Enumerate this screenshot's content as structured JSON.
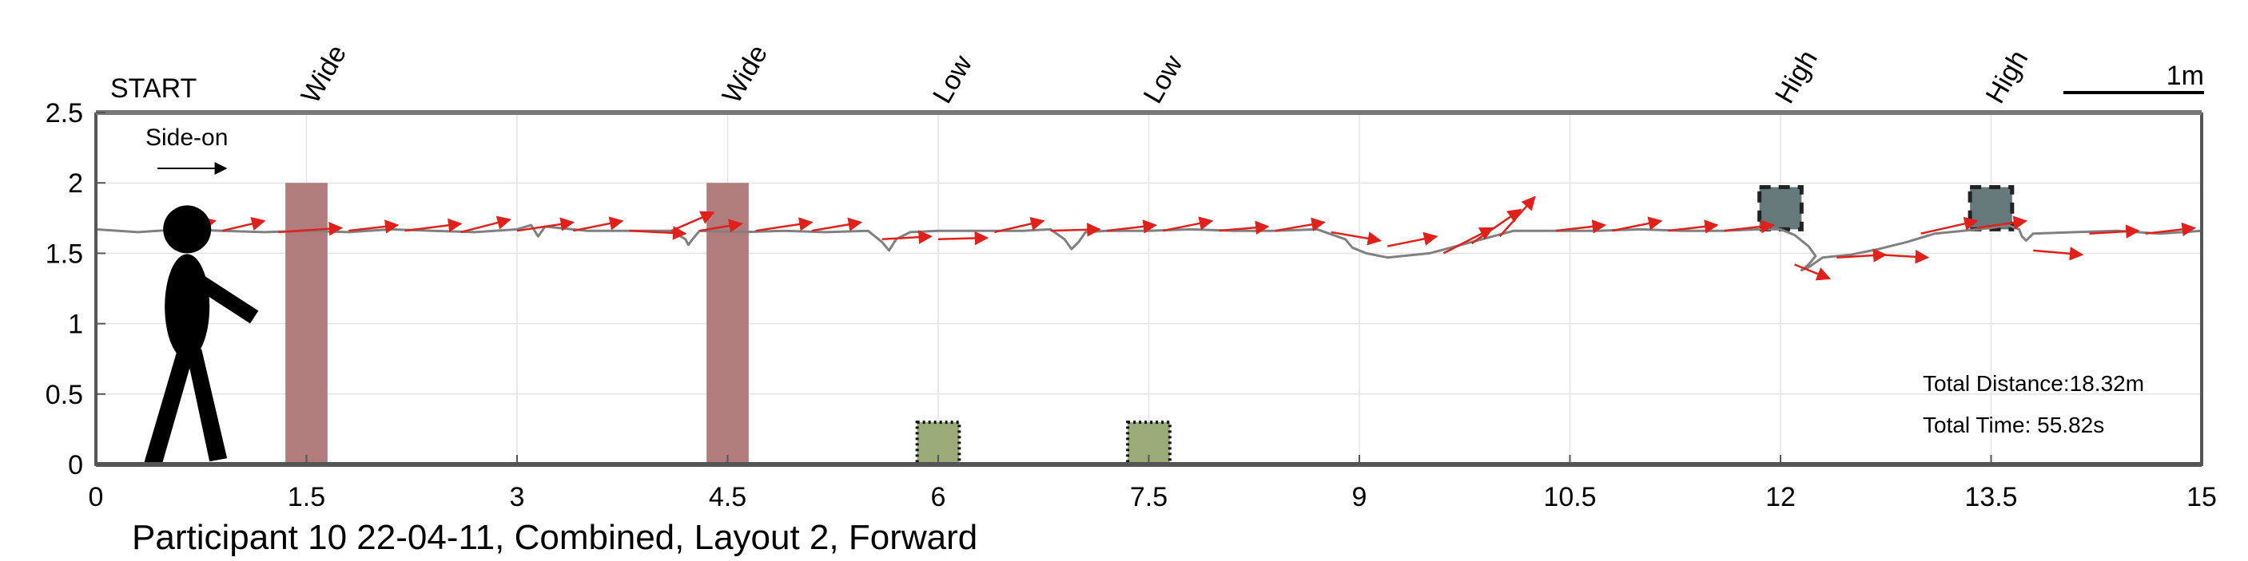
{
  "chart_data": {
    "type": "line",
    "caption": "Participant 10 22-04-11, Combined, Layout 2, Forward",
    "start_label": "START",
    "scale_label": "1m",
    "direction_label": "Side-on",
    "xlim": [
      0,
      15
    ],
    "ylim": [
      0,
      2.5
    ],
    "x_ticks": [
      0,
      1.5,
      3,
      4.5,
      6,
      7.5,
      9,
      10.5,
      12,
      13.5,
      15
    ],
    "x_tick_labels": [
      "0",
      "1.5",
      "3",
      "4.5",
      "6",
      "7.5",
      "9",
      "10.5",
      "12",
      "13.5",
      "15"
    ],
    "y_ticks": [
      0,
      0.5,
      1,
      1.5,
      2,
      2.5
    ],
    "y_tick_labels": [
      "0",
      "0.5",
      "1",
      "1.5",
      "2",
      "2.5"
    ],
    "grid": true,
    "obstacles": [
      {
        "label": "Wide",
        "kind": "wide",
        "x0": 1.35,
        "x1": 1.65,
        "y0": 0,
        "y1": 2.0,
        "color": "#b07c7c"
      },
      {
        "label": "Wide",
        "kind": "wide",
        "x0": 4.35,
        "x1": 4.65,
        "y0": 0,
        "y1": 2.0,
        "color": "#b07c7c"
      },
      {
        "label": "Low",
        "kind": "low",
        "x0": 5.85,
        "x1": 6.15,
        "y0": 0,
        "y1": 0.3,
        "color": "#9aab78"
      },
      {
        "label": "Low",
        "kind": "low",
        "x0": 7.35,
        "x1": 7.65,
        "y0": 0,
        "y1": 0.3,
        "color": "#9aab78"
      },
      {
        "label": "High",
        "kind": "high",
        "x0": 11.85,
        "x1": 12.15,
        "y0": 1.67,
        "y1": 1.97,
        "color": "#65797b"
      },
      {
        "label": "High",
        "kind": "high",
        "x0": 13.35,
        "x1": 13.65,
        "y0": 1.67,
        "y1": 1.97,
        "color": "#65797b"
      }
    ],
    "series": [
      {
        "color": "#808080",
        "x": [
          0,
          0.3,
          0.6,
          0.9,
          1.2,
          1.5,
          1.8,
          2.1,
          2.4,
          2.7,
          3.0,
          3.1,
          3.15,
          3.2,
          3.5,
          3.8,
          4.1,
          4.2,
          4.22,
          4.25,
          4.3,
          4.6,
          4.9,
          5.2,
          5.5,
          5.6,
          5.65,
          5.7,
          5.8,
          6.0,
          6.3,
          6.6,
          6.8,
          6.9,
          6.95,
          7.0,
          7.05,
          7.2,
          7.5,
          7.8,
          8.1,
          8.4,
          8.7,
          8.9,
          8.95,
          9.05,
          9.2,
          9.5,
          9.8,
          10.1,
          10.4,
          10.7,
          11.0,
          11.3,
          11.6,
          11.85,
          12.0,
          12.1,
          12.2,
          12.25,
          12.2,
          12.15,
          12.2,
          12.3,
          12.5,
          12.7,
          12.9,
          13.1,
          13.3,
          13.5,
          13.62,
          13.7,
          13.72,
          13.75,
          13.8,
          14.1,
          14.4,
          14.7,
          15.0
        ],
        "y": [
          1.67,
          1.65,
          1.67,
          1.66,
          1.65,
          1.66,
          1.65,
          1.67,
          1.66,
          1.65,
          1.67,
          1.7,
          1.62,
          1.69,
          1.66,
          1.66,
          1.66,
          1.6,
          1.56,
          1.6,
          1.66,
          1.65,
          1.66,
          1.65,
          1.66,
          1.58,
          1.52,
          1.6,
          1.65,
          1.66,
          1.66,
          1.66,
          1.67,
          1.6,
          1.53,
          1.58,
          1.65,
          1.66,
          1.66,
          1.67,
          1.66,
          1.66,
          1.67,
          1.6,
          1.54,
          1.5,
          1.47,
          1.5,
          1.58,
          1.66,
          1.66,
          1.66,
          1.67,
          1.66,
          1.66,
          1.67,
          1.67,
          1.63,
          1.55,
          1.48,
          1.42,
          1.38,
          1.4,
          1.47,
          1.49,
          1.53,
          1.58,
          1.64,
          1.66,
          1.68,
          1.7,
          1.67,
          1.62,
          1.59,
          1.64,
          1.65,
          1.66,
          1.64,
          1.66
        ]
      }
    ],
    "vectors": {
      "color": "#e0201b",
      "start_x": [
        0.5,
        0.9,
        1.3,
        1.8,
        2.2,
        2.6,
        3.0,
        3.4,
        3.8,
        4.1,
        4.3,
        4.7,
        5.1,
        5.6,
        6.0,
        6.4,
        6.8,
        7.2,
        7.6,
        8.0,
        8.4,
        8.8,
        9.2,
        9.6,
        9.8,
        10.0,
        10.4,
        10.8,
        11.2,
        11.6,
        12.1,
        12.4,
        12.7,
        13.0,
        13.4,
        13.8,
        14.2,
        14.6
      ],
      "start_y": [
        1.65,
        1.66,
        1.65,
        1.66,
        1.66,
        1.65,
        1.66,
        1.66,
        1.66,
        1.66,
        1.66,
        1.66,
        1.66,
        1.6,
        1.6,
        1.65,
        1.66,
        1.66,
        1.66,
        1.66,
        1.66,
        1.65,
        1.55,
        1.5,
        1.57,
        1.62,
        1.66,
        1.66,
        1.66,
        1.66,
        1.42,
        1.47,
        1.49,
        1.64,
        1.68,
        1.52,
        1.64,
        1.64
      ],
      "end_x": [
        0.85,
        1.2,
        1.75,
        2.15,
        2.6,
        2.95,
        3.4,
        3.75,
        4.2,
        4.4,
        4.6,
        5.1,
        5.45,
        5.95,
        6.35,
        6.75,
        7.15,
        7.55,
        7.95,
        8.35,
        8.75,
        9.15,
        9.55,
        9.95,
        10.15,
        10.25,
        10.75,
        11.15,
        11.55,
        11.95,
        12.35,
        12.75,
        13.05,
        13.4,
        13.75,
        14.15,
        14.55,
        14.95
      ],
      "end_y": [
        1.73,
        1.73,
        1.68,
        1.7,
        1.71,
        1.74,
        1.72,
        1.73,
        1.64,
        1.79,
        1.71,
        1.72,
        1.72,
        1.62,
        1.61,
        1.73,
        1.67,
        1.7,
        1.73,
        1.69,
        1.72,
        1.59,
        1.62,
        1.68,
        1.81,
        1.9,
        1.7,
        1.73,
        1.7,
        1.7,
        1.32,
        1.49,
        1.47,
        1.73,
        1.73,
        1.49,
        1.66,
        1.68
      ]
    },
    "walker": {
      "x": 0.65,
      "head_y": 1.67,
      "foot_y": 0.01
    },
    "stats": {
      "total_distance": "Total Distance:18.32m",
      "total_time": "Total Time: 55.82s"
    }
  }
}
